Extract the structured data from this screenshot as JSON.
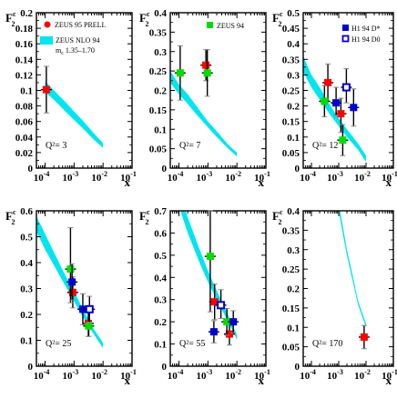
{
  "colors": {
    "band": "#00e5ee",
    "zeus95": "#ff0000",
    "zeus94": "#00dd00",
    "h1_dstar": "#0000cc",
    "h1_dzero": "#0000cc",
    "error_bar": "#000000",
    "error_bar_light": "#888888"
  },
  "y_axis_label_main": "F",
  "y_axis_label_sup": "c",
  "y_axis_label_sub": "2",
  "x_axis_label": "x",
  "x_tick_labels": [
    "10",
    "10",
    "10",
    "10"
  ],
  "x_tick_exponents": [
    "-4",
    "-3",
    "-2",
    "-1"
  ],
  "legends": {
    "zeus95": "ZEUS 95 PRELI.",
    "band_line1": "ZEUS NLO 94",
    "band_line2": "m",
    "band_line2_sub": "c",
    "band_line2_rest": " 1.35–1.70",
    "zeus94": "ZEUS 94",
    "h1_dstar": "H1 94 D*",
    "h1_dzero": "H1 94 D0"
  },
  "chart_data": [
    {
      "type": "scatter",
      "q2_label": "Q²= 3",
      "ylim": [
        0,
        0.2
      ],
      "yticks": [
        "0",
        "0.02",
        "0.04",
        "0.06",
        "0.08",
        "0.1",
        "0.12",
        "0.14",
        "0.16",
        "0.18",
        "0.2"
      ],
      "xlim": [
        5e-05,
        0.1
      ],
      "x_scale": "log",
      "band": {
        "x": [
          0.0001,
          0.0002,
          0.0005,
          0.001,
          0.002,
          0.005,
          0.01
        ],
        "lower": [
          0.098,
          0.088,
          0.073,
          0.062,
          0.051,
          0.036,
          0.026
        ],
        "upper": [
          0.112,
          0.1,
          0.085,
          0.073,
          0.061,
          0.044,
          0.032
        ]
      },
      "series": [
        {
          "name": "ZEUS 95 PRELI.",
          "points": [
            {
              "x": 0.00011,
              "y": 0.101,
              "err_lo": 0.03,
              "err_hi": 0.03
            }
          ]
        }
      ]
    },
    {
      "type": "scatter",
      "q2_label": "Q²= 7",
      "ylim": [
        0,
        0.4
      ],
      "yticks": [
        "0",
        "0.05",
        "0.1",
        "0.15",
        "0.2",
        "0.25",
        "0.3",
        "0.35",
        "0.4"
      ],
      "xlim": [
        5e-05,
        0.1
      ],
      "x_scale": "log",
      "band": {
        "x": [
          5e-05,
          0.0001,
          0.0002,
          0.0005,
          0.001,
          0.002,
          0.005,
          0.01
        ],
        "lower": [
          0.22,
          0.19,
          0.165,
          0.13,
          0.105,
          0.08,
          0.05,
          0.03
        ],
        "upper": [
          0.25,
          0.215,
          0.19,
          0.15,
          0.12,
          0.095,
          0.06,
          0.04
        ]
      },
      "series": [
        {
          "name": "ZEUS 95 PRELI.",
          "points": [
            {
              "x": 0.00085,
              "y": 0.265,
              "err_lo": 0.04,
              "err_hi": 0.04
            }
          ]
        },
        {
          "name": "ZEUS 94",
          "points": [
            {
              "x": 0.00011,
              "y": 0.245,
              "err_lo": 0.07,
              "err_hi": 0.07
            },
            {
              "x": 0.00095,
              "y": 0.245,
              "err_lo": 0.06,
              "err_hi": 0.06
            }
          ]
        }
      ]
    },
    {
      "type": "scatter",
      "q2_label": "Q²= 12",
      "ylim": [
        0,
        0.5
      ],
      "yticks": [
        "0",
        "0.05",
        "0.1",
        "0.15",
        "0.2",
        "0.25",
        "0.3",
        "0.35",
        "0.4",
        "0.45",
        "0.5"
      ],
      "xlim": [
        5e-05,
        0.1
      ],
      "x_scale": "log",
      "band": {
        "x": [
          5e-05,
          0.0001,
          0.0002,
          0.0005,
          0.001,
          0.002,
          0.005,
          0.01
        ],
        "lower": [
          0.31,
          0.26,
          0.22,
          0.17,
          0.135,
          0.1,
          0.06,
          0.02
        ],
        "upper": [
          0.36,
          0.3,
          0.26,
          0.2,
          0.16,
          0.125,
          0.08,
          0.04
        ]
      },
      "series": [
        {
          "name": "ZEUS 95 PRELI.",
          "points": [
            {
              "x": 0.0004,
              "y": 0.275,
              "err_lo": 0.06,
              "err_hi": 0.06
            },
            {
              "x": 0.0012,
              "y": 0.175,
              "err_lo": 0.06,
              "err_hi": 0.05
            }
          ]
        },
        {
          "name": "ZEUS 94",
          "points": [
            {
              "x": 0.0003,
              "y": 0.215,
              "err_lo": 0.05,
              "err_hi": 0.05
            },
            {
              "x": 0.0014,
              "y": 0.09,
              "err_lo": 0.05,
              "err_hi": 0.05
            }
          ]
        },
        {
          "name": "H1 94 D*",
          "points": [
            {
              "x": 0.0008,
              "y": 0.21,
              "err_lo": 0.04,
              "err_hi": 0.05
            },
            {
              "x": 0.0035,
              "y": 0.195,
              "err_lo": 0.06,
              "err_hi": 0.06
            }
          ]
        },
        {
          "name": "H1 94 D0",
          "points": [
            {
              "x": 0.0019,
              "y": 0.26,
              "err_lo": 0.05,
              "err_hi": 0.06
            }
          ]
        }
      ]
    },
    {
      "type": "scatter",
      "q2_label": "Q²= 25",
      "ylim": [
        0,
        0.6
      ],
      "yticks": [
        "0",
        "0.1",
        "0.2",
        "0.3",
        "0.4",
        "0.5",
        "0.6"
      ],
      "xlim": [
        5e-05,
        0.1
      ],
      "x_scale": "log",
      "band": {
        "x": [
          5e-05,
          0.0001,
          0.0002,
          0.0005,
          0.001,
          0.002,
          0.005,
          0.01
        ],
        "lower": [
          0.52,
          0.45,
          0.39,
          0.31,
          0.25,
          0.19,
          0.12,
          0.07
        ],
        "upper": [
          0.58,
          0.51,
          0.44,
          0.35,
          0.29,
          0.22,
          0.14,
          0.09
        ]
      },
      "series": [
        {
          "name": "ZEUS 95 PRELI.",
          "points": [
            {
              "x": 0.0009,
              "y": 0.285,
              "err_lo": 0.06,
              "err_hi": 0.06
            },
            {
              "x": 0.0031,
              "y": 0.165,
              "err_lo": 0.05,
              "err_hi": 0.05
            }
          ]
        },
        {
          "name": "ZEUS 94",
          "points": [
            {
              "x": 0.00075,
              "y": 0.375,
              "err_lo": 0.13,
              "err_hi": 0.16
            },
            {
              "x": 0.0032,
              "y": 0.155,
              "err_lo": 0.04,
              "err_hi": 0.06
            }
          ]
        },
        {
          "name": "H1 94 D*",
          "points": [
            {
              "x": 0.00085,
              "y": 0.325,
              "err_lo": 0.07,
              "err_hi": 0.07
            },
            {
              "x": 0.002,
              "y": 0.22,
              "err_lo": 0.06,
              "err_hi": 0.06
            }
          ]
        },
        {
          "name": "H1 94 D0",
          "points": [
            {
              "x": 0.0034,
              "y": 0.22,
              "err_lo": 0.05,
              "err_hi": 0.05
            }
          ]
        }
      ]
    },
    {
      "type": "scatter",
      "q2_label": "Q²= 55",
      "ylim": [
        0,
        0.7
      ],
      "yticks": [
        "0",
        "0.1",
        "0.2",
        "0.3",
        "0.4",
        "0.5",
        "0.6",
        "0.7"
      ],
      "xlim": [
        5e-05,
        0.1
      ],
      "x_scale": "log",
      "band": {
        "x": [
          0.0001,
          0.0002,
          0.0005,
          0.001,
          0.002,
          0.005,
          0.01
        ],
        "lower": [
          0.72,
          0.6,
          0.47,
          0.38,
          0.3,
          0.2,
          0.12
        ],
        "upper": [
          0.8,
          0.67,
          0.53,
          0.43,
          0.34,
          0.23,
          0.14
        ]
      },
      "series": [
        {
          "name": "ZEUS 95 PRELI.",
          "points": [
            {
              "x": 0.0017,
              "y": 0.29,
              "err_lo": 0.08,
              "err_hi": 0.08
            },
            {
              "x": 0.0055,
              "y": 0.145,
              "err_lo": 0.05,
              "err_hi": 0.06
            }
          ]
        },
        {
          "name": "ZEUS 94",
          "points": [
            {
              "x": 0.0012,
              "y": 0.495,
              "err_lo": 0.25,
              "err_hi": 0.25
            },
            {
              "x": 0.0045,
              "y": 0.2,
              "err_lo": 0.06,
              "err_hi": 0.06
            }
          ]
        },
        {
          "name": "H1 94 D*",
          "points": [
            {
              "x": 0.0016,
              "y": 0.155,
              "err_lo": 0.05,
              "err_hi": 0.05
            },
            {
              "x": 0.0075,
              "y": 0.2,
              "err_lo": 0.05,
              "err_hi": 0.05
            }
          ]
        },
        {
          "name": "H1 94 D0",
          "points": [
            {
              "x": 0.0028,
              "y": 0.275,
              "err_lo": 0.06,
              "err_hi": 0.07
            }
          ]
        }
      ]
    },
    {
      "type": "scatter",
      "q2_label": "Q²= 170",
      "ylim": [
        0,
        0.4
      ],
      "yticks": [
        "0",
        "0.05",
        "0.1",
        "0.15",
        "0.2",
        "0.25",
        "0.3",
        "0.35",
        "0.4"
      ],
      "xlim": [
        5e-05,
        0.1
      ],
      "x_scale": "log",
      "band": {
        "x": [
          0.001,
          0.0015,
          0.002,
          0.003,
          0.005,
          0.007,
          0.01
        ],
        "lower": [
          0.4,
          0.33,
          0.285,
          0.23,
          0.16,
          0.13,
          0.1
        ],
        "upper": [
          0.42,
          0.35,
          0.3,
          0.245,
          0.17,
          0.14,
          0.11
        ]
      },
      "series": [
        {
          "name": "ZEUS 95 PRELI.",
          "points": [
            {
              "x": 0.0085,
              "y": 0.075,
              "err_lo": 0.03,
              "err_hi": 0.03
            }
          ]
        }
      ]
    }
  ]
}
